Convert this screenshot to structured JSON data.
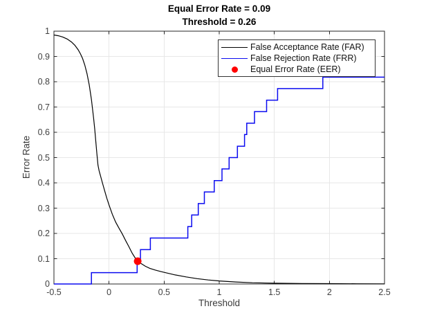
{
  "figure": {
    "background": "#FFFFFF"
  },
  "chart_data": {
    "type": "line",
    "title_line1": "Equal Error Rate = 0.09",
    "title_line2": "Threshold = 0.26",
    "xlabel": "Threshold",
    "ylabel": "Error Rate",
    "xlim": [
      -0.5,
      2.5
    ],
    "ylim": [
      0,
      1
    ],
    "xticks": [
      -0.5,
      0,
      0.5,
      1,
      1.5,
      2,
      2.5
    ],
    "xtick_labels": [
      "-0.5",
      "0",
      "0.5",
      "1",
      "1.5",
      "2",
      "2.5"
    ],
    "yticks": [
      0,
      0.1,
      0.2,
      0.3,
      0.4,
      0.5,
      0.6,
      0.7,
      0.8,
      0.9,
      1
    ],
    "ytick_labels": [
      "0",
      "0.1",
      "0.2",
      "0.3",
      "0.4",
      "0.5",
      "0.6",
      "0.7",
      "0.8",
      "0.9",
      "1"
    ],
    "grid": true,
    "legend_position": "top-right",
    "colors": {
      "grid": "#E7E7E7",
      "axis": "#262626",
      "far": "#000000",
      "frr": "#0A0AF0",
      "eer": "#FF0000"
    },
    "eer_annotation": {
      "equal_error_rate": 0.09,
      "threshold": 0.26
    },
    "series": [
      {
        "name": "False Acceptance Rate (FAR)",
        "type": "line",
        "color": "#000000",
        "points": [
          [
            -0.5,
            0.985
          ],
          [
            -0.46,
            0.982
          ],
          [
            -0.42,
            0.977
          ],
          [
            -0.38,
            0.969
          ],
          [
            -0.34,
            0.957
          ],
          [
            -0.31,
            0.944
          ],
          [
            -0.28,
            0.926
          ],
          [
            -0.26,
            0.911
          ],
          [
            -0.24,
            0.892
          ],
          [
            -0.22,
            0.866
          ],
          [
            -0.2,
            0.832
          ],
          [
            -0.18,
            0.788
          ],
          [
            -0.16,
            0.73
          ],
          [
            -0.14,
            0.655
          ],
          [
            -0.13,
            0.612
          ],
          [
            -0.12,
            0.565
          ],
          [
            -0.11,
            0.515
          ],
          [
            -0.1,
            0.47
          ],
          [
            -0.09,
            0.448
          ],
          [
            -0.08,
            0.432
          ],
          [
            -0.06,
            0.4
          ],
          [
            -0.04,
            0.369
          ],
          [
            -0.02,
            0.339
          ],
          [
            0,
            0.312
          ],
          [
            0.03,
            0.276
          ],
          [
            0.06,
            0.245
          ],
          [
            0.09,
            0.221
          ],
          [
            0.12,
            0.198
          ],
          [
            0.15,
            0.172
          ],
          [
            0.18,
            0.148
          ],
          [
            0.21,
            0.122
          ],
          [
            0.24,
            0.101
          ],
          [
            0.26,
            0.09
          ],
          [
            0.29,
            0.081
          ],
          [
            0.33,
            0.07
          ],
          [
            0.37,
            0.062
          ],
          [
            0.42,
            0.055
          ],
          [
            0.47,
            0.049
          ],
          [
            0.52,
            0.044
          ],
          [
            0.6,
            0.036
          ],
          [
            0.7,
            0.028
          ],
          [
            0.8,
            0.021
          ],
          [
            0.9,
            0.016
          ],
          [
            1,
            0.012
          ],
          [
            1.15,
            0.008
          ],
          [
            1.3,
            0.005
          ],
          [
            1.5,
            0.003
          ],
          [
            1.75,
            0.002
          ],
          [
            2,
            0.0013
          ],
          [
            2.25,
            0.0008
          ],
          [
            2.5,
            0.0005
          ]
        ]
      },
      {
        "name": "False Rejection Rate (FRR)",
        "type": "step",
        "color": "#0A0AF0",
        "start": [
          -0.5,
          0
        ],
        "steps": [
          [
            -0.16,
            0.045
          ],
          [
            0.255,
            0.091
          ],
          [
            0.285,
            0.136
          ],
          [
            0.375,
            0.182
          ],
          [
            0.715,
            0.227
          ],
          [
            0.75,
            0.273
          ],
          [
            0.81,
            0.318
          ],
          [
            0.865,
            0.364
          ],
          [
            0.955,
            0.409
          ],
          [
            1.025,
            0.455
          ],
          [
            1.09,
            0.5
          ],
          [
            1.165,
            0.545
          ],
          [
            1.23,
            0.591
          ],
          [
            1.25,
            0.636
          ],
          [
            1.32,
            0.682
          ],
          [
            1.43,
            0.727
          ],
          [
            1.53,
            0.773
          ],
          [
            1.94,
            0.818
          ]
        ],
        "end_x": 2.5
      },
      {
        "name": "Equal Error Rate (EER)",
        "type": "scatter",
        "marker": "filled-circle",
        "color": "#FF0000",
        "points": [
          [
            0.26,
            0.09
          ]
        ]
      }
    ]
  },
  "legend": {
    "entries": [
      {
        "label": "False Acceptance Rate (FAR)",
        "swatch": "line",
        "color": "#000000"
      },
      {
        "label": "False Rejection Rate (FRR)",
        "swatch": "line",
        "color": "#0A0AF0"
      },
      {
        "label": "Equal Error Rate (EER)",
        "swatch": "dot",
        "color": "#FF0000"
      }
    ]
  }
}
